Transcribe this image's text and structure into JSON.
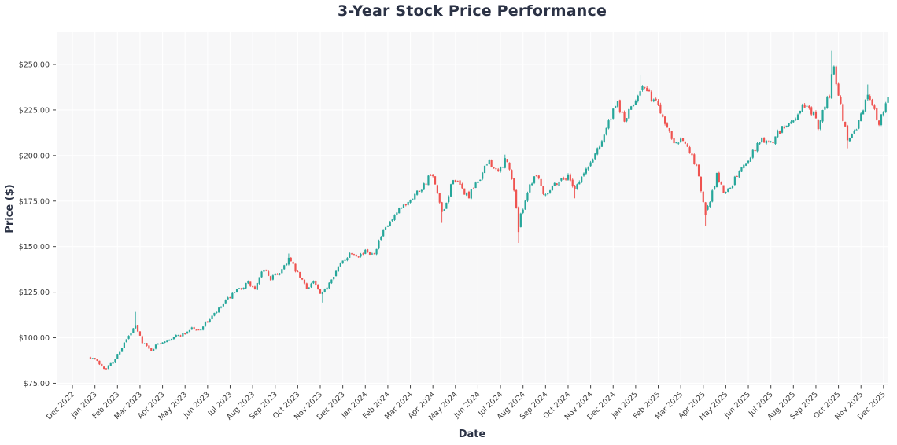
{
  "title": "3-Year Stock Price Performance",
  "chart_data": {
    "type": "candlestick",
    "title": "3-Year Stock Price Performance",
    "xlabel": "Date",
    "ylabel": "Price ($)",
    "legend": null,
    "grid": true,
    "plot_bg_color": "#f7f7f8",
    "grid_color": "#ffffff",
    "up_color": "#26a69a",
    "down_color": "#ef5350",
    "tick_color": "#3c3c3c",
    "axis_title_color": "#2b3245",
    "y_ticks": [
      75,
      100,
      125,
      150,
      175,
      200,
      225,
      250
    ],
    "y_tick_labels": [
      "$75.00",
      "$100.00",
      "$125.00",
      "$150.00",
      "$175.00",
      "$200.00",
      "$225.00",
      "$250.00"
    ],
    "ylim": [
      73.9,
      267.7
    ],
    "xlim_months": [
      -0.7,
      36.18
    ],
    "x_tick_labels": [
      "Dec 2022",
      "Jan 2023",
      "Feb 2023",
      "Mar 2023",
      "Apr 2023",
      "May 2023",
      "Jun 2023",
      "Jul 2023",
      "Aug 2023",
      "Sep 2023",
      "Oct 2023",
      "Nov 2023",
      "Dec 2023",
      "Jan 2024",
      "Feb 2024",
      "Mar 2024",
      "Apr 2024",
      "May 2024",
      "Jun 2024",
      "Jul 2024",
      "Aug 2024",
      "Sep 2024",
      "Oct 2024",
      "Nov 2024",
      "Dec 2024",
      "Jan 2025",
      "Feb 2025",
      "Mar 2025",
      "Apr 2025",
      "May 2025",
      "Jun 2025",
      "Jul 2025",
      "Aug 2025",
      "Sep 2025",
      "Oct 2025",
      "Nov 2025",
      "Dec 2025"
    ],
    "data_start_month": 0.8,
    "data_end_month": 36.15,
    "candles_per_month": 10,
    "price_waypoints": [
      [
        0.8,
        89.5
      ],
      [
        1.0,
        88.0
      ],
      [
        1.45,
        83.0
      ],
      [
        1.8,
        86.5
      ],
      [
        2.3,
        97.0
      ],
      [
        2.7,
        104.5
      ],
      [
        2.8,
        106.0
      ],
      [
        3.1,
        98.0
      ],
      [
        3.45,
        93.0
      ],
      [
        3.8,
        96.5
      ],
      [
        4.0,
        98.0
      ],
      [
        4.5,
        100.5
      ],
      [
        5.0,
        102.5
      ],
      [
        5.3,
        105.5
      ],
      [
        5.55,
        103.5
      ],
      [
        6.0,
        109.0
      ],
      [
        6.5,
        115.5
      ],
      [
        7.0,
        122.5
      ],
      [
        7.5,
        127.5
      ],
      [
        7.8,
        130.0
      ],
      [
        8.1,
        126.5
      ],
      [
        8.5,
        138.0
      ],
      [
        8.8,
        132.5
      ],
      [
        9.2,
        136.0
      ],
      [
        9.6,
        143.5
      ],
      [
        10.0,
        135.0
      ],
      [
        10.4,
        127.5
      ],
      [
        10.7,
        131.0
      ],
      [
        11.05,
        122.5
      ],
      [
        11.5,
        133.0
      ],
      [
        12.0,
        142.0
      ],
      [
        12.35,
        147.0
      ],
      [
        12.75,
        145.5
      ],
      [
        13.1,
        147.5
      ],
      [
        13.35,
        146.0
      ],
      [
        13.8,
        158.0
      ],
      [
        14.2,
        164.5
      ],
      [
        14.6,
        171.0
      ],
      [
        15.0,
        176.5
      ],
      [
        15.5,
        182.5
      ],
      [
        15.95,
        190.0
      ],
      [
        16.45,
        166.5
      ],
      [
        16.9,
        188.0
      ],
      [
        17.3,
        181.0
      ],
      [
        17.6,
        177.5
      ],
      [
        18.1,
        188.0
      ],
      [
        18.5,
        197.5
      ],
      [
        18.85,
        189.5
      ],
      [
        19.25,
        198.5
      ],
      [
        19.6,
        182.0
      ],
      [
        19.8,
        161.0
      ],
      [
        20.0,
        172.0
      ],
      [
        20.3,
        184.0
      ],
      [
        20.6,
        190.5
      ],
      [
        20.95,
        178.5
      ],
      [
        21.3,
        183.5
      ],
      [
        21.7,
        187.0
      ],
      [
        22.0,
        188.5
      ],
      [
        22.3,
        182.5
      ],
      [
        22.7,
        190.0
      ],
      [
        23.0,
        196.0
      ],
      [
        23.5,
        209.0
      ],
      [
        23.9,
        221.0
      ],
      [
        24.2,
        228.5
      ],
      [
        24.5,
        219.0
      ],
      [
        24.85,
        227.0
      ],
      [
        25.25,
        238.5
      ],
      [
        25.6,
        233.0
      ],
      [
        26.0,
        228.0
      ],
      [
        26.4,
        215.5
      ],
      [
        26.75,
        207.5
      ],
      [
        27.05,
        210.5
      ],
      [
        27.4,
        201.0
      ],
      [
        27.75,
        193.5
      ],
      [
        28.05,
        169.0
      ],
      [
        28.3,
        174.0
      ],
      [
        28.6,
        189.5
      ],
      [
        28.95,
        179.0
      ],
      [
        29.4,
        187.0
      ],
      [
        29.8,
        195.0
      ],
      [
        30.2,
        202.0
      ],
      [
        30.6,
        209.5
      ],
      [
        30.95,
        206.0
      ],
      [
        31.35,
        213.0
      ],
      [
        31.7,
        216.5
      ],
      [
        32.1,
        221.0
      ],
      [
        32.5,
        228.0
      ],
      [
        32.9,
        222.0
      ],
      [
        33.1,
        216.5
      ],
      [
        33.4,
        227.0
      ],
      [
        33.6,
        234.0
      ],
      [
        33.7,
        247.0
      ],
      [
        33.78,
        250.5
      ],
      [
        33.9,
        240.0
      ],
      [
        34.1,
        228.0
      ],
      [
        34.4,
        207.5
      ],
      [
        34.7,
        213.5
      ],
      [
        35.0,
        222.0
      ],
      [
        35.3,
        234.0
      ],
      [
        35.55,
        228.0
      ],
      [
        35.75,
        216.5
      ],
      [
        35.95,
        224.0
      ],
      [
        36.15,
        231.5
      ]
    ],
    "wick_spikes": [
      {
        "m": 2.78,
        "high": 114.2
      },
      {
        "m": 9.6,
        "high": 146.2
      },
      {
        "m": 11.05,
        "low": 119.3
      },
      {
        "m": 16.45,
        "low": 163.0
      },
      {
        "m": 19.25,
        "high": 200.5
      },
      {
        "m": 19.8,
        "low": 152.0
      },
      {
        "m": 22.3,
        "low": 176.5
      },
      {
        "m": 25.25,
        "high": 244.0
      },
      {
        "m": 28.05,
        "low": 161.5
      },
      {
        "m": 33.73,
        "high": 257.5
      },
      {
        "m": 34.42,
        "low": 204.0
      },
      {
        "m": 35.3,
        "high": 239.0
      }
    ],
    "random_seed": 7
  }
}
